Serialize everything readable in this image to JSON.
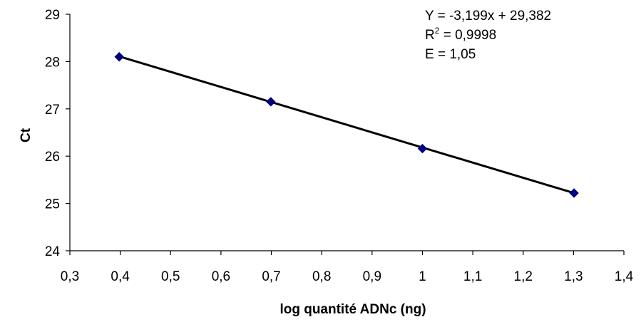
{
  "chart_data": {
    "type": "scatter",
    "title": "",
    "xlabel": "log quantité ADNc (ng)",
    "ylabel": "Ct",
    "xlim": [
      0.3,
      1.4
    ],
    "ylim": [
      24,
      29
    ],
    "x_ticks": [
      "0,3",
      "0,4",
      "0,5",
      "0,6",
      "0,7",
      "0,8",
      "0,9",
      "1",
      "1,1",
      "1,2",
      "1,3",
      "1,4"
    ],
    "y_ticks": [
      "24",
      "25",
      "26",
      "27",
      "28",
      "29"
    ],
    "grid": false,
    "legend": "none",
    "series": [
      {
        "x": [
          0.398,
          0.699,
          1.0,
          1.301
        ],
        "y": [
          28.1,
          27.15,
          26.16,
          25.22
        ],
        "marker": "diamond",
        "marker_color": "#000080"
      }
    ],
    "trendline": {
      "slope": -3.199,
      "intercept": 29.382,
      "x_range": [
        0.398,
        1.301
      ],
      "color": "#000000"
    },
    "annotations": {
      "equation": "Y = -3,199x + 29,382",
      "r2_prefix": "R",
      "r2_sup": "2",
      "r2_value": " = 0,9998",
      "efficiency": "E = 1,05"
    }
  }
}
